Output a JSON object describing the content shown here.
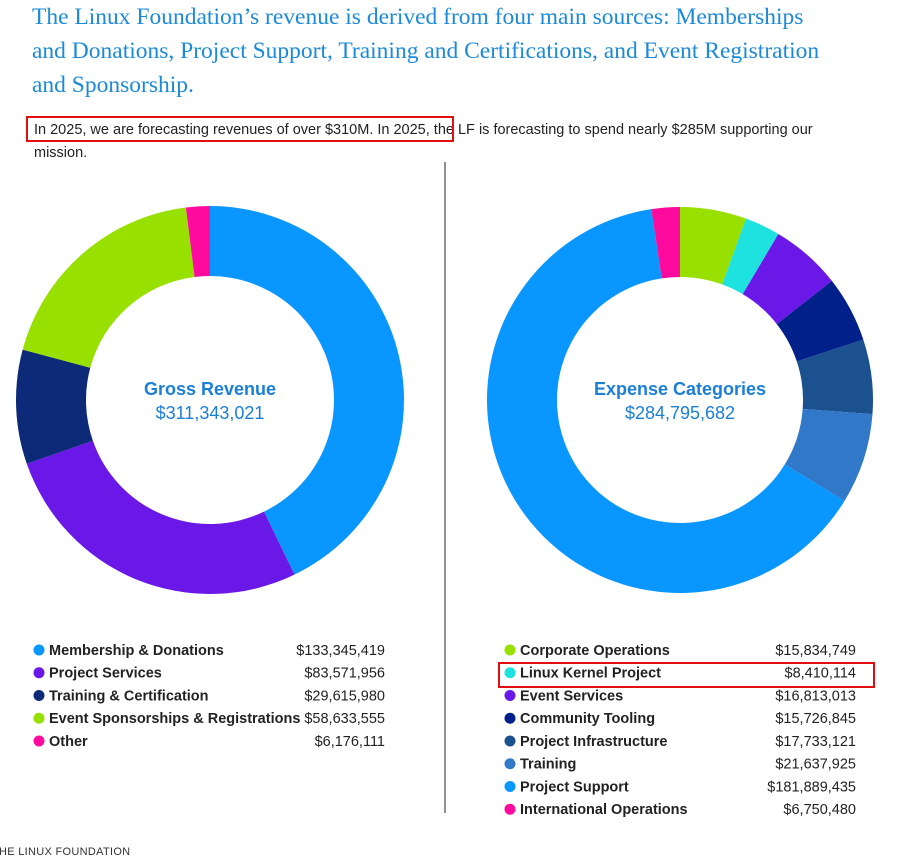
{
  "heading": "The Linux Foundation’s revenue is derived from four main sources: Memberships and Donations, Project Support, Training and Certifications, and Event Registration and Sponsorship.",
  "intro": "In 2025, we are forecasting revenues of over $310M. In 2025, the LF is forecasting to spend nearly $285M supporting our mission.",
  "chart_data": [
    {
      "type": "pie",
      "center_text": [
        "Gross Revenue",
        "$311,343,021"
      ],
      "categories": [
        "Membership & Donations",
        "Project Services",
        "Training & Certification",
        "Event Sponsorships & Registrations",
        "Other"
      ],
      "values": [
        133345419,
        83571956,
        29615980,
        58633555,
        6176111
      ],
      "value_labels": [
        "$133,345,419",
        "$83,571,956",
        "$29,615,980",
        "$58,633,555",
        "$6,176,111"
      ],
      "colors": [
        "#0a96ff",
        "#6a18e8",
        "#0c2a78",
        "#98e000",
        "#ff0a9e"
      ]
    },
    {
      "type": "pie",
      "center_text": [
        "Expense Categories",
        "$284,795,682"
      ],
      "categories": [
        "Corporate Operations",
        "Linux Kernel Project",
        "Event Services",
        "Community Tooling",
        "Project Infrastructure",
        "Training",
        "Project Support",
        "International Operations"
      ],
      "values": [
        15834749,
        8410114,
        16813013,
        15726845,
        17733121,
        21637925,
        181889435,
        6750480
      ],
      "value_labels": [
        "$15,834,749",
        "$8,410,114",
        "$16,813,013",
        "$15,726,845",
        "$17,733,121",
        "$21,637,925",
        "$181,889,435",
        "$6,750,480"
      ],
      "colors": [
        "#98e000",
        "#1ee2df",
        "#6a18e8",
        "#02208a",
        "#1c5190",
        "#3278c8",
        "#0a96ff",
        "#ff0a9e"
      ]
    }
  ],
  "footer": "THE LINUX FOUNDATION"
}
